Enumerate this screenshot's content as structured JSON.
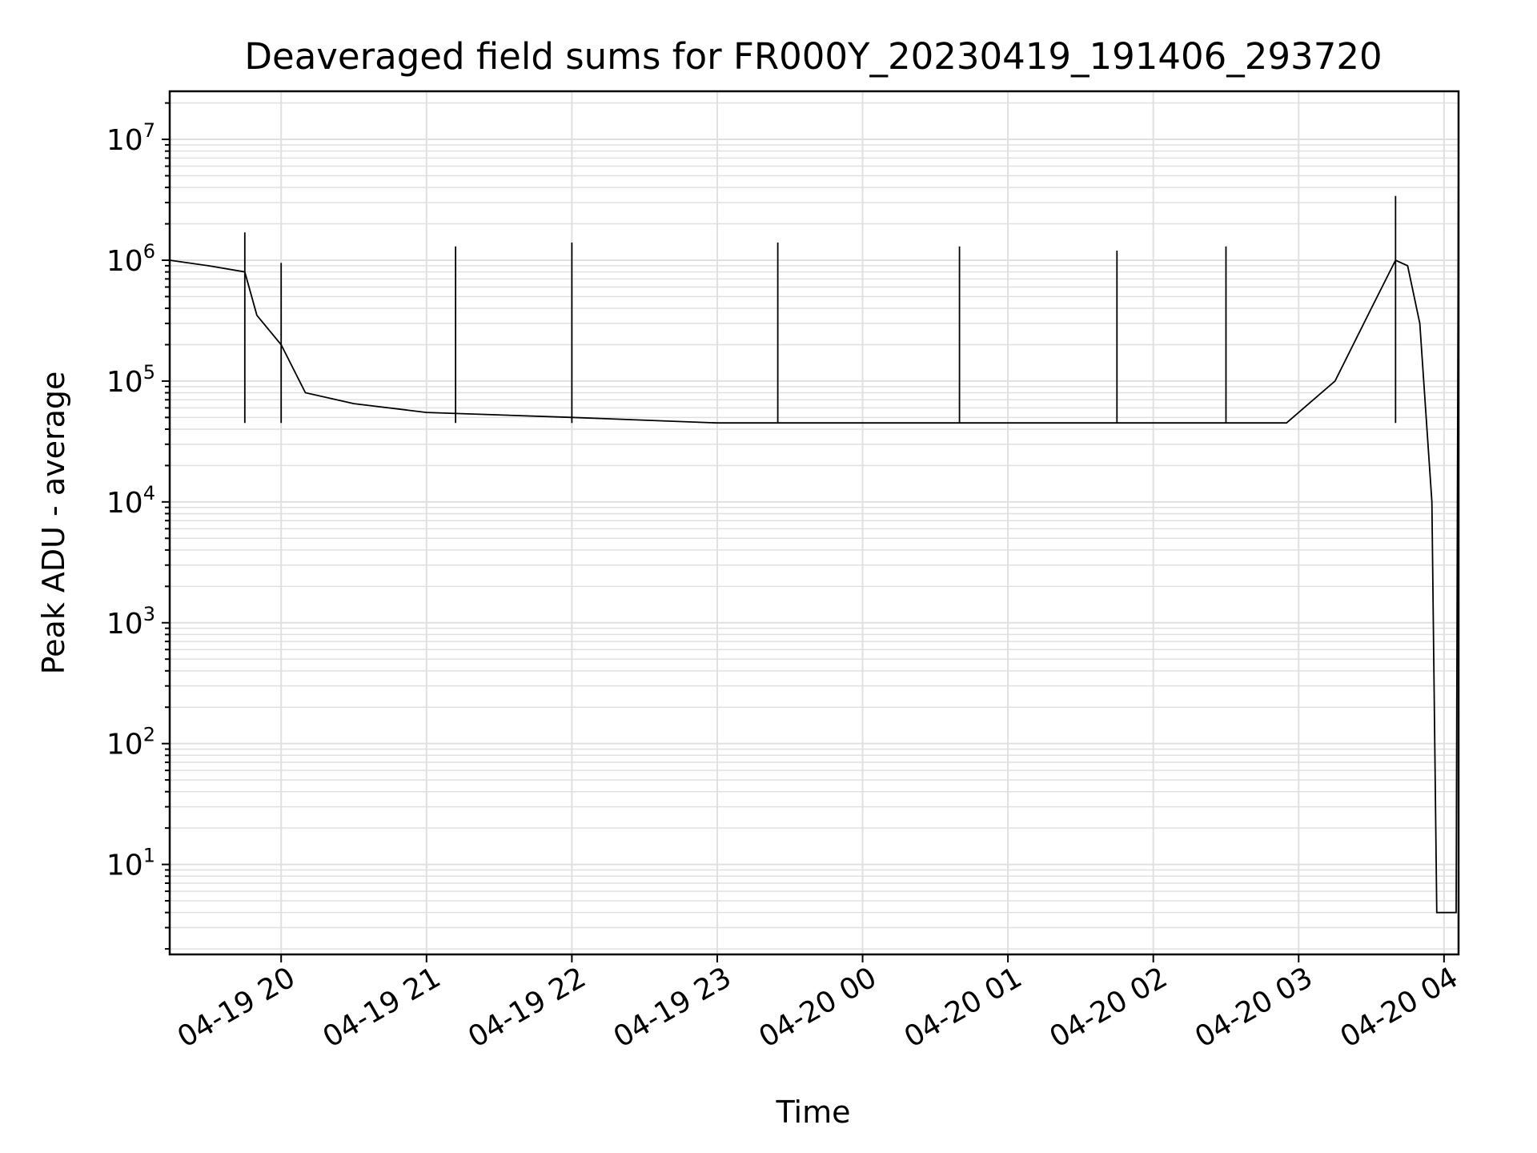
{
  "chart_data": {
    "type": "line",
    "title": "Deaveraged field sums for FR000Y_20230419_191406_293720",
    "xlabel": "Time",
    "ylabel": "Peak ADU - average",
    "yscale": "log",
    "ylim": [
      1.8,
      25000000
    ],
    "xlim": [
      "2023-04-19 19:14",
      "2023-04-20 04:06"
    ],
    "grid": true,
    "line_color": "#000000",
    "grid_color": "#e0e0e0",
    "x_ticks": [
      "04-19 20",
      "04-19 21",
      "04-19 22",
      "04-19 23",
      "04-20 00",
      "04-20 01",
      "04-20 02",
      "04-20 03",
      "04-20 04"
    ],
    "y_ticks": [
      {
        "base": "10",
        "exp": "1"
      },
      {
        "base": "10",
        "exp": "2"
      },
      {
        "base": "10",
        "exp": "3"
      },
      {
        "base": "10",
        "exp": "4"
      },
      {
        "base": "10",
        "exp": "5"
      },
      {
        "base": "10",
        "exp": "6"
      },
      {
        "base": "10",
        "exp": "7"
      }
    ],
    "series": [
      {
        "x": [
          "2023-04-19 19:14",
          "2023-04-19 19:30",
          "2023-04-19 19:45",
          "2023-04-19 19:50",
          "2023-04-19 20:00",
          "2023-04-19 20:10",
          "2023-04-19 20:30",
          "2023-04-19 21:00",
          "2023-04-19 22:00",
          "2023-04-19 23:00",
          "2023-04-20 00:00",
          "2023-04-20 01:00",
          "2023-04-20 02:00",
          "2023-04-20 02:55",
          "2023-04-20 03:15",
          "2023-04-20 03:30",
          "2023-04-20 03:40",
          "2023-04-20 03:45",
          "2023-04-20 03:50",
          "2023-04-20 03:55",
          "2023-04-20 03:57",
          "2023-04-20 04:05",
          "2023-04-20 04:06"
        ],
        "y": [
          1000000,
          900000,
          800000,
          350000,
          200000,
          80000,
          65000,
          55000,
          50000,
          45000,
          45000,
          45000,
          45000,
          45000,
          100000,
          400000,
          1000000,
          900000,
          300000,
          10000,
          4,
          4,
          11000000
        ]
      }
    ],
    "spikes": [
      {
        "x": "2023-04-19 19:45",
        "y": 1700000
      },
      {
        "x": "2023-04-19 20:00",
        "y": 950000
      },
      {
        "x": "2023-04-19 21:12",
        "y": 1300000
      },
      {
        "x": "2023-04-19 22:00",
        "y": 1400000
      },
      {
        "x": "2023-04-19 23:25",
        "y": 1400000
      },
      {
        "x": "2023-04-20 00:40",
        "y": 1300000
      },
      {
        "x": "2023-04-20 01:45",
        "y": 1200000
      },
      {
        "x": "2023-04-20 02:30",
        "y": 1300000
      },
      {
        "x": "2023-04-20 03:40",
        "y": 3400000
      },
      {
        "x": "2023-04-20 04:06",
        "y": 11000000
      }
    ]
  }
}
